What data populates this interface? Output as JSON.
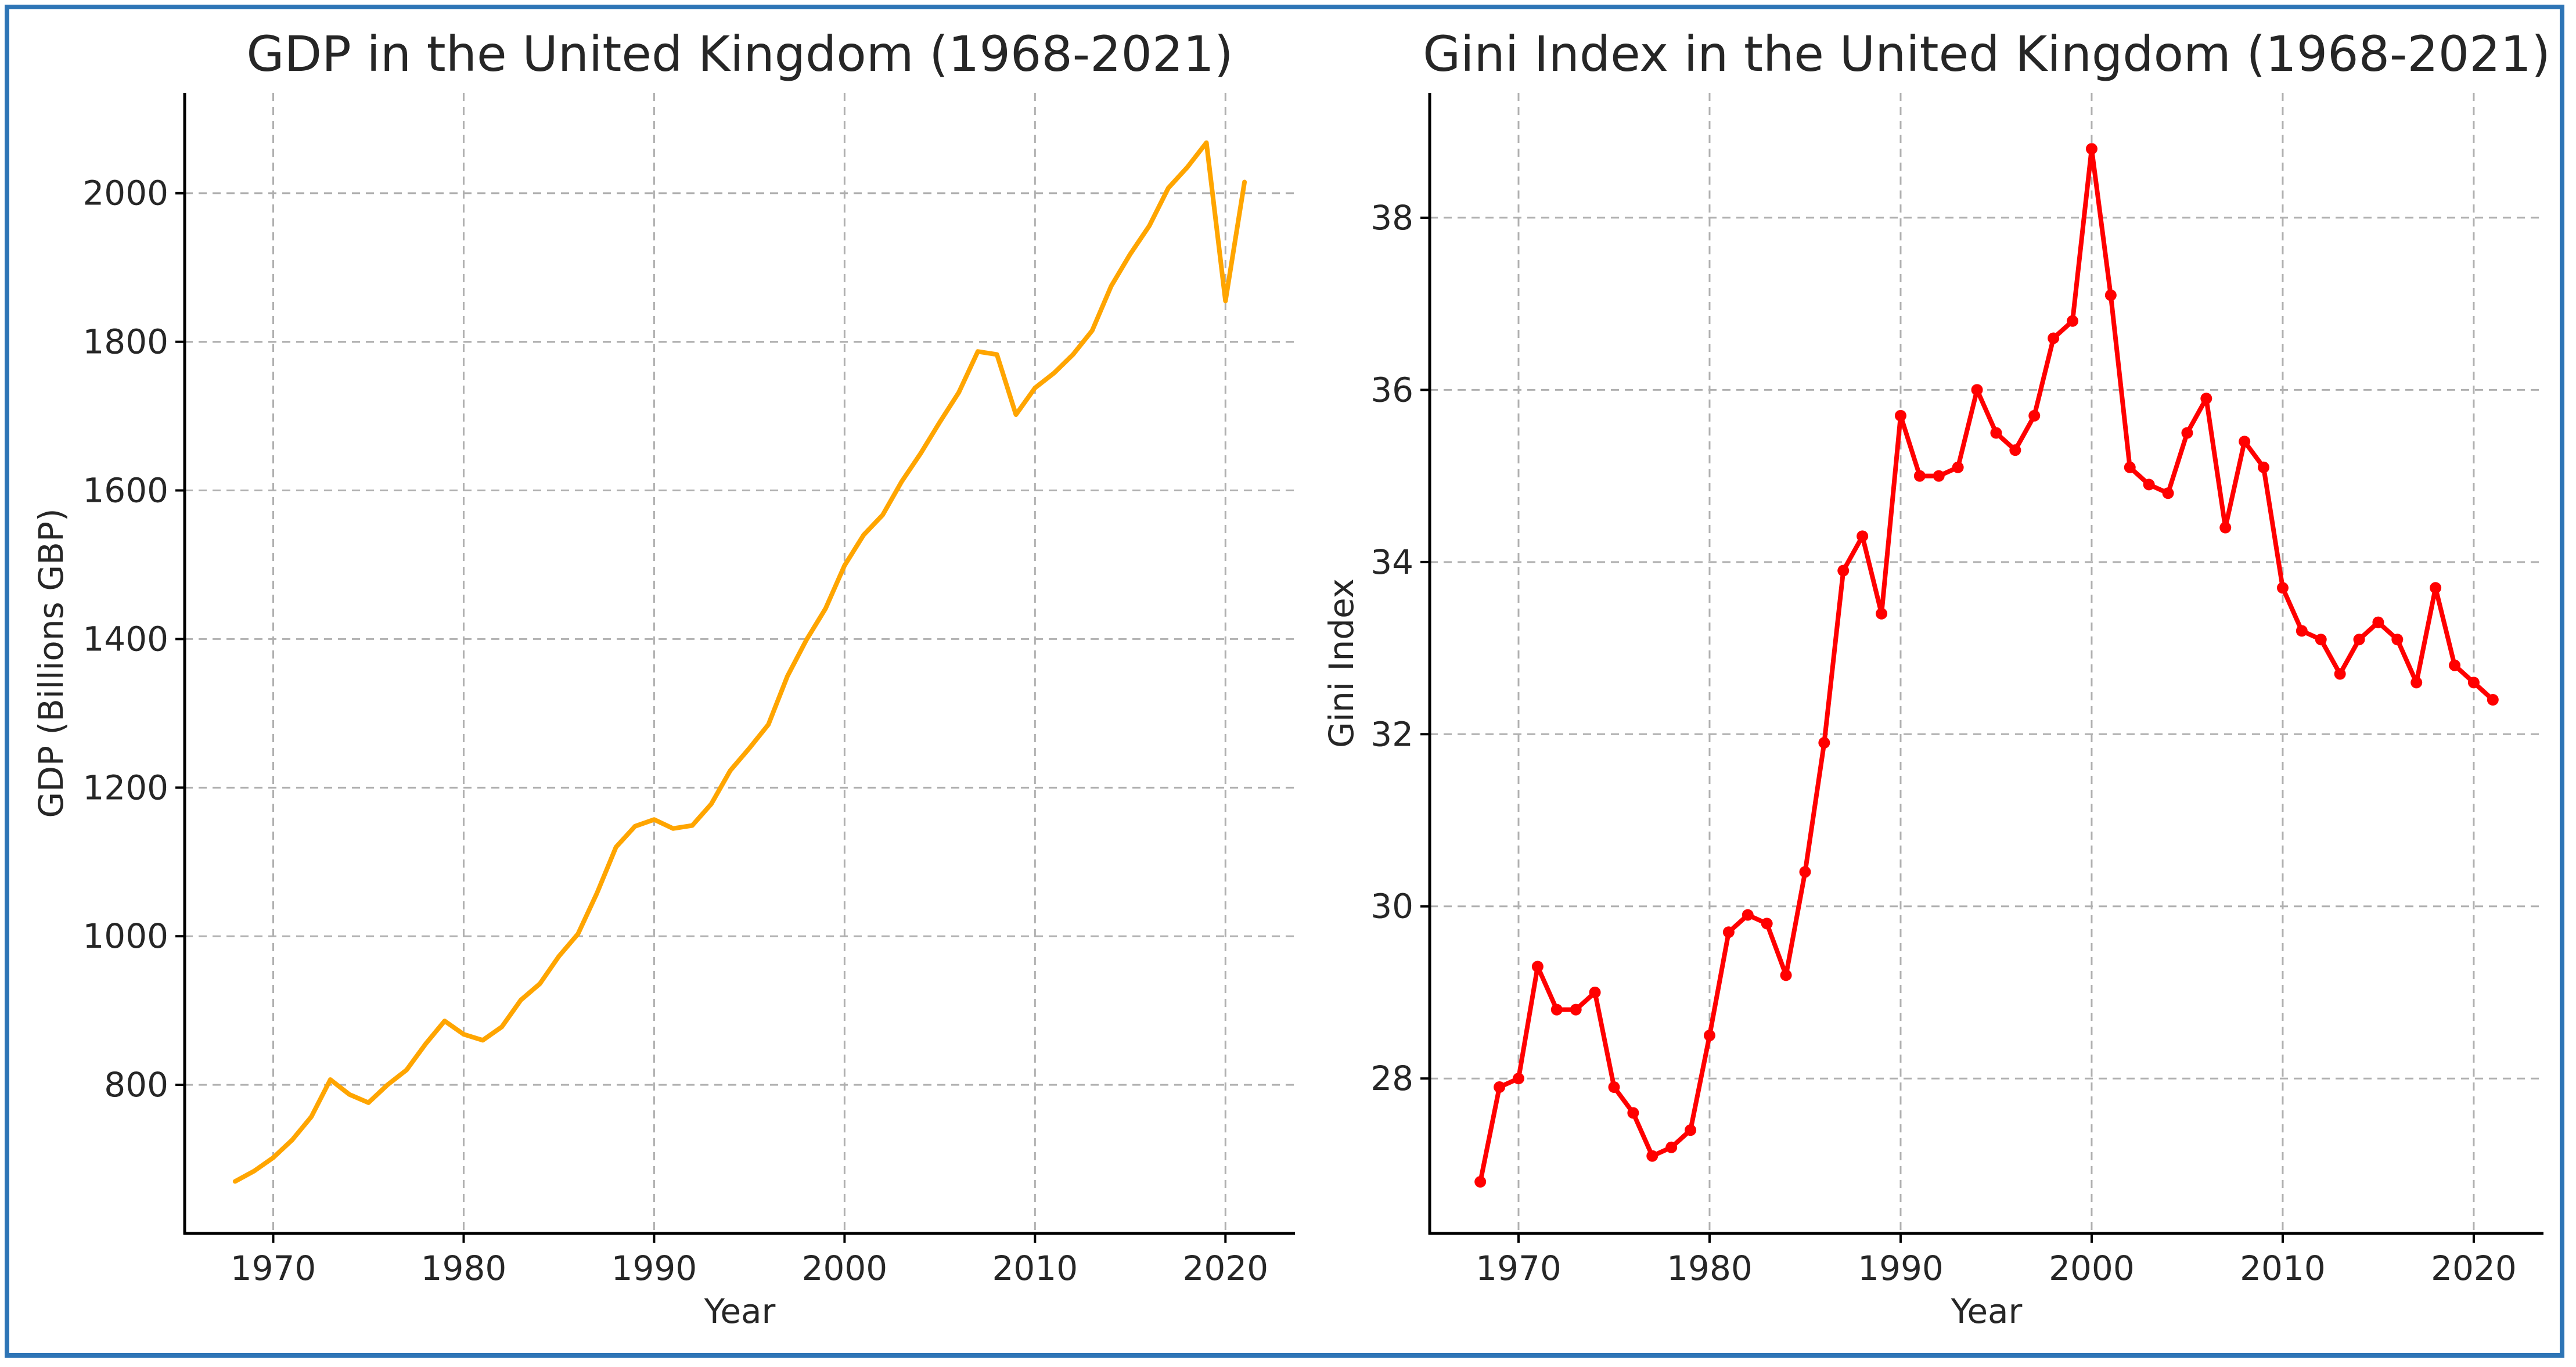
{
  "chart_data": [
    {
      "type": "line",
      "title": "GDP in the United Kingdom (1968-2021)",
      "xlabel": "Year",
      "ylabel": "GDP (Billions GBP)",
      "xlim": [
        1965.35,
        2023.65
      ],
      "ylim": [
        600,
        2135
      ],
      "xticks": [
        1970,
        1980,
        1990,
        2000,
        2010,
        2020
      ],
      "yticks": [
        800,
        1000,
        1200,
        1400,
        1600,
        1800,
        2000
      ],
      "grid": true,
      "markers": false,
      "color": "#FFA500",
      "series": [
        {
          "name": "GDP",
          "x": [
            1968,
            1969,
            1970,
            1971,
            1972,
            1973,
            1974,
            1975,
            1976,
            1977,
            1978,
            1979,
            1980,
            1981,
            1982,
            1983,
            1984,
            1985,
            1986,
            1987,
            1988,
            1989,
            1990,
            1991,
            1992,
            1993,
            1994,
            1995,
            1996,
            1997,
            1998,
            1999,
            2000,
            2001,
            2002,
            2003,
            2004,
            2005,
            2006,
            2007,
            2008,
            2009,
            2010,
            2011,
            2012,
            2013,
            2014,
            2015,
            2016,
            2017,
            2018,
            2019,
            2020,
            2021
          ],
          "values": [
            670,
            684,
            702,
            726,
            757,
            807,
            787,
            776,
            800,
            820,
            855,
            886,
            868,
            860,
            878,
            914,
            936,
            973,
            1003,
            1058,
            1120,
            1148,
            1157,
            1145,
            1149,
            1178,
            1223,
            1253,
            1285,
            1350,
            1399,
            1441,
            1499,
            1540,
            1567,
            1612,
            1650,
            1692,
            1732,
            1787,
            1783,
            1702,
            1738,
            1758,
            1783,
            1815,
            1875,
            1918,
            1956,
            2007,
            2035,
            2068,
            1855,
            2015
          ]
        }
      ]
    },
    {
      "type": "line",
      "title": "Gini Index in the United Kingdom (1968-2021)",
      "xlabel": "Year",
      "ylabel": "Gini Index",
      "xlim": [
        1965.35,
        2023.65
      ],
      "ylim": [
        26.2,
        39.45
      ],
      "xticks": [
        1970,
        1980,
        1990,
        2000,
        2010,
        2020
      ],
      "yticks": [
        28,
        30,
        32,
        34,
        36,
        38
      ],
      "grid": true,
      "markers": true,
      "color": "#FF0000",
      "series": [
        {
          "name": "Gini Index",
          "x": [
            1968,
            1969,
            1970,
            1971,
            1972,
            1973,
            1974,
            1975,
            1976,
            1977,
            1978,
            1979,
            1980,
            1981,
            1982,
            1983,
            1984,
            1985,
            1986,
            1987,
            1988,
            1989,
            1990,
            1991,
            1992,
            1993,
            1994,
            1995,
            1996,
            1997,
            1998,
            1999,
            2000,
            2001,
            2002,
            2003,
            2004,
            2005,
            2006,
            2007,
            2008,
            2009,
            2010,
            2011,
            2012,
            2013,
            2014,
            2015,
            2016,
            2017,
            2018,
            2019,
            2020,
            2021
          ],
          "values": [
            26.8,
            27.9,
            28.0,
            29.3,
            28.8,
            28.8,
            29.0,
            27.9,
            27.6,
            27.1,
            27.2,
            27.4,
            28.5,
            29.7,
            29.9,
            29.8,
            29.2,
            30.4,
            31.9,
            33.9,
            34.3,
            33.4,
            35.7,
            35.0,
            35.0,
            35.1,
            36.0,
            35.5,
            35.3,
            35.7,
            36.6,
            36.8,
            38.8,
            37.1,
            35.1,
            34.9,
            34.8,
            35.5,
            35.9,
            34.4,
            35.4,
            35.1,
            33.7,
            33.2,
            33.1,
            32.7,
            33.1,
            33.3,
            33.1,
            32.6,
            33.7,
            32.8,
            32.6,
            32.4
          ]
        }
      ]
    }
  ]
}
